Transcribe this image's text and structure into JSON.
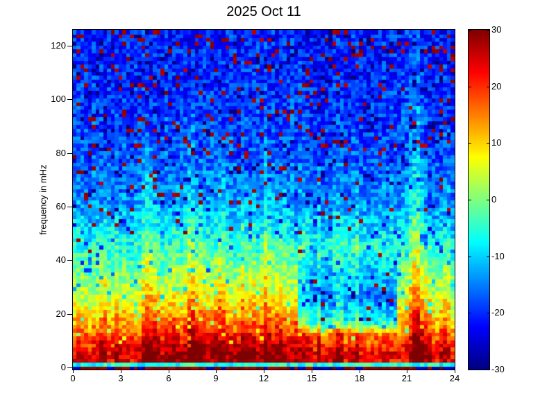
{
  "chart_data": {
    "type": "heatmap",
    "title": "2025 Oct 11",
    "xlabel": "",
    "ylabel": "frequency in mHz",
    "xlim": [
      0,
      24
    ],
    "ylim": [
      0,
      126
    ],
    "x_ticks": [
      0,
      3,
      6,
      9,
      12,
      15,
      18,
      21,
      24
    ],
    "y_ticks": [
      0,
      20,
      40,
      60,
      80,
      100,
      120
    ],
    "grid": "off",
    "colorbar": {
      "min": -30,
      "max": 30,
      "ticks": [
        30,
        20,
        10,
        0,
        -10,
        -20,
        -30
      ],
      "colormap": "jet",
      "position": "right"
    },
    "summary": "24-hour ULF spectrogram. High power (red, +20 to +30 dB) below ~15 mHz all day, strongest 3-14 h and near 21.6 h; yellow-green 15-30 mHz; cyan 30-55 mHz; blue background (-15 to -25 dB) above ~60 mHz with scattered dark-red speckle pixels. Vertical enhancement streaks near 4.7, 7.4, 9.3, 12.2 h and a strong event at ~21.6 h reaching ~120 mHz. Quieter notch 14-20 h around 15-30 mHz. Lowest pixel row alternates dark red/dark blue; second row is cyan.",
    "render_model": {
      "seed": 20251011,
      "cols": 100,
      "rows": 90,
      "f_max": 126,
      "t_max": 24,
      "noise_db": 5.5,
      "col_jitter_db": 3,
      "profile": {
        "f": [
          3,
          6,
          10,
          15,
          20,
          28,
          38,
          50,
          62,
          80,
          100,
          126
        ],
        "db": [
          22,
          23,
          19,
          13.5,
          9,
          3,
          -2,
          -8,
          -14,
          -17.5,
          -19.5,
          -21
        ]
      },
      "bottom_rows": {
        "red_db": 29,
        "navy_db": -26,
        "toggle_to_navy": 0.2,
        "toggle_to_red": 0.35,
        "row1_db": -6,
        "row1_noise_db": 5
      },
      "minor_streaks": {
        "prob": 0.35,
        "max_amp_db": 6,
        "fmax_min": 45,
        "fmax_range": 50
      },
      "day_enhancement": {
        "amp_db": 5,
        "center_h": 9.5,
        "width_h": 5.5,
        "f_scale": 38
      },
      "quiet_patch": {
        "t_start": 14.2,
        "t_end": 20.4,
        "depth_db": 18,
        "f_ramp": [
          13,
          18,
          28,
          45
        ]
      },
      "events": [
        {
          "t": 1.9,
          "amp": 7,
          "fmax": 65,
          "w": 0.22
        },
        {
          "t": 2.8,
          "amp": 5,
          "fmax": 55,
          "w": 0.2
        },
        {
          "t": 4.7,
          "amp": 11,
          "fmax": 100,
          "w": 0.3
        },
        {
          "t": 5.3,
          "amp": 8,
          "fmax": 85,
          "w": 0.22
        },
        {
          "t": 6.3,
          "amp": 7,
          "fmax": 75,
          "w": 0.25
        },
        {
          "t": 7.4,
          "amp": 12,
          "fmax": 105,
          "w": 0.3
        },
        {
          "t": 8.1,
          "amp": 8,
          "fmax": 80,
          "w": 0.22
        },
        {
          "t": 9.3,
          "amp": 10,
          "fmax": 95,
          "w": 0.28
        },
        {
          "t": 10.6,
          "amp": 7,
          "fmax": 80,
          "w": 0.22
        },
        {
          "t": 11.3,
          "amp": 6,
          "fmax": 70,
          "w": 0.2
        },
        {
          "t": 12.2,
          "amp": 10,
          "fmax": 95,
          "w": 0.28
        },
        {
          "t": 13.0,
          "amp": 9,
          "fmax": 70,
          "w": 0.25
        },
        {
          "t": 14.1,
          "amp": 6,
          "fmax": 55,
          "w": 0.2
        },
        {
          "t": 21.6,
          "amp": 16,
          "fmax": 128,
          "w": 0.32
        },
        {
          "t": 22.3,
          "amp": 9,
          "fmax": 55,
          "w": 0.25
        },
        {
          "t": 23.3,
          "amp": 7,
          "fmax": 45,
          "w": 0.2
        }
      ],
      "speckles": {
        "pos_base_prob": 0.03,
        "pos_extra_prob": 0.06,
        "pos_db_min": 26,
        "pos_db_range": 4,
        "only_if_below_db": -8,
        "neg_prob": 0.055,
        "neg_depth_db": 13,
        "neg_min_f": 8
      }
    }
  }
}
